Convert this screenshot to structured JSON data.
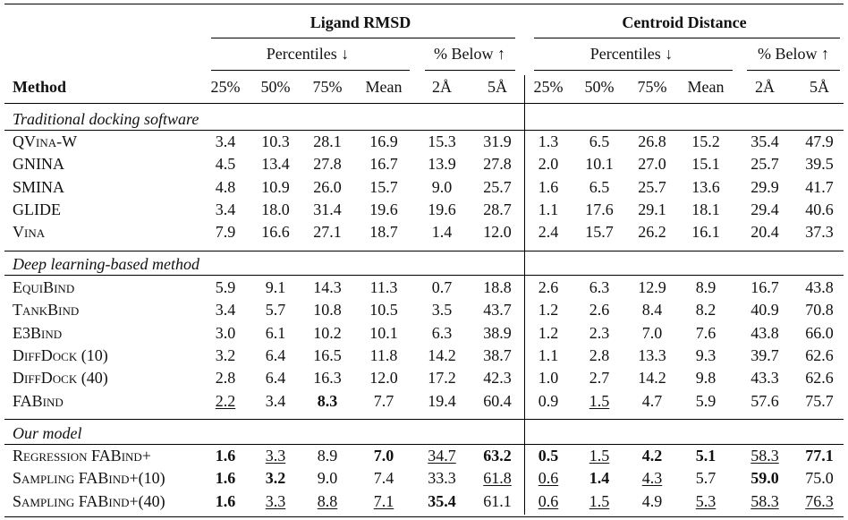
{
  "header": {
    "group1": "Ligand RMSD",
    "group2": "Centroid Distance",
    "percentiles": "Percentiles ↓",
    "below": "% Below ↑",
    "method": "Method",
    "cols": [
      "25%",
      "50%",
      "75%",
      "Mean",
      "2Å",
      "5Å",
      "25%",
      "50%",
      "75%",
      "Mean",
      "2Å",
      "5Å"
    ]
  },
  "sections": [
    {
      "title": "Traditional docking software",
      "rows": [
        {
          "method": "QVina-W",
          "values": [
            "3.4",
            "10.3",
            "28.1",
            "16.9",
            "15.3",
            "31.9",
            "1.3",
            "6.5",
            "26.8",
            "15.2",
            "35.4",
            "47.9"
          ],
          "bold": [],
          "underline": []
        },
        {
          "method": "GNINA",
          "values": [
            "4.5",
            "13.4",
            "27.8",
            "16.7",
            "13.9",
            "27.8",
            "2.0",
            "10.1",
            "27.0",
            "15.1",
            "25.7",
            "39.5"
          ],
          "bold": [],
          "underline": []
        },
        {
          "method": "SMINA",
          "values": [
            "4.8",
            "10.9",
            "26.0",
            "15.7",
            "9.0",
            "25.7",
            "1.6",
            "6.5",
            "25.7",
            "13.6",
            "29.9",
            "41.7"
          ],
          "bold": [],
          "underline": []
        },
        {
          "method": "GLIDE",
          "values": [
            "3.4",
            "18.0",
            "31.4",
            "19.6",
            "19.6",
            "28.7",
            "1.1",
            "17.6",
            "29.1",
            "18.1",
            "29.4",
            "40.6"
          ],
          "bold": [],
          "underline": []
        },
        {
          "method": "Vina",
          "values": [
            "7.9",
            "16.6",
            "27.1",
            "18.7",
            "1.4",
            "12.0",
            "2.4",
            "15.7",
            "26.2",
            "16.1",
            "20.4",
            "37.3"
          ],
          "bold": [],
          "underline": []
        }
      ]
    },
    {
      "title": "Deep learning-based method",
      "rows": [
        {
          "method": "EquiBind",
          "values": [
            "5.9",
            "9.1",
            "14.3",
            "11.3",
            "0.7",
            "18.8",
            "2.6",
            "6.3",
            "12.9",
            "8.9",
            "16.7",
            "43.8"
          ],
          "bold": [],
          "underline": []
        },
        {
          "method": "TankBind",
          "values": [
            "3.4",
            "5.7",
            "10.8",
            "10.5",
            "3.5",
            "43.7",
            "1.2",
            "2.6",
            "8.4",
            "8.2",
            "40.9",
            "70.8"
          ],
          "bold": [],
          "underline": []
        },
        {
          "method": "E3Bind",
          "values": [
            "3.0",
            "6.1",
            "10.2",
            "10.1",
            "6.3",
            "38.9",
            "1.2",
            "2.3",
            "7.0",
            "7.6",
            "43.8",
            "66.0"
          ],
          "bold": [],
          "underline": []
        },
        {
          "method": "DiffDock (10)",
          "values": [
            "3.2",
            "6.4",
            "16.5",
            "11.8",
            "14.2",
            "38.7",
            "1.1",
            "2.8",
            "13.3",
            "9.3",
            "39.7",
            "62.6"
          ],
          "bold": [],
          "underline": []
        },
        {
          "method": "DiffDock (40)",
          "values": [
            "2.8",
            "6.4",
            "16.3",
            "12.0",
            "17.2",
            "42.3",
            "1.0",
            "2.7",
            "14.2",
            "9.8",
            "43.3",
            "62.6"
          ],
          "bold": [],
          "underline": []
        },
        {
          "method": "FABind",
          "values": [
            "2.2",
            "3.4",
            "8.3",
            "7.7",
            "19.4",
            "60.4",
            "0.9",
            "1.5",
            "4.7",
            "5.9",
            "57.6",
            "75.7"
          ],
          "bold": [
            2
          ],
          "underline": [
            0,
            7
          ]
        }
      ]
    },
    {
      "title": "Our model",
      "rows": [
        {
          "method": "Regression FABind+",
          "values": [
            "1.6",
            "3.3",
            "8.9",
            "7.0",
            "34.7",
            "63.2",
            "0.5",
            "1.5",
            "4.2",
            "5.1",
            "58.3",
            "77.1"
          ],
          "bold": [
            0,
            3,
            5,
            6,
            8,
            9,
            11
          ],
          "underline": [
            1,
            4,
            7,
            10
          ]
        },
        {
          "method": "Sampling FABind+(10)",
          "values": [
            "1.6",
            "3.2",
            "9.0",
            "7.4",
            "33.3",
            "61.8",
            "0.6",
            "1.4",
            "4.3",
            "5.7",
            "59.0",
            "75.0"
          ],
          "bold": [
            0,
            1,
            7,
            10
          ],
          "underline": [
            5,
            6,
            8
          ]
        },
        {
          "method": "Sampling FABind+(40)",
          "values": [
            "1.6",
            "3.3",
            "8.8",
            "7.1",
            "35.4",
            "61.1",
            "0.6",
            "1.5",
            "4.9",
            "5.3",
            "58.3",
            "76.3"
          ],
          "bold": [
            0,
            4
          ],
          "underline": [
            1,
            2,
            3,
            6,
            7,
            9,
            10,
            11
          ]
        }
      ]
    }
  ]
}
